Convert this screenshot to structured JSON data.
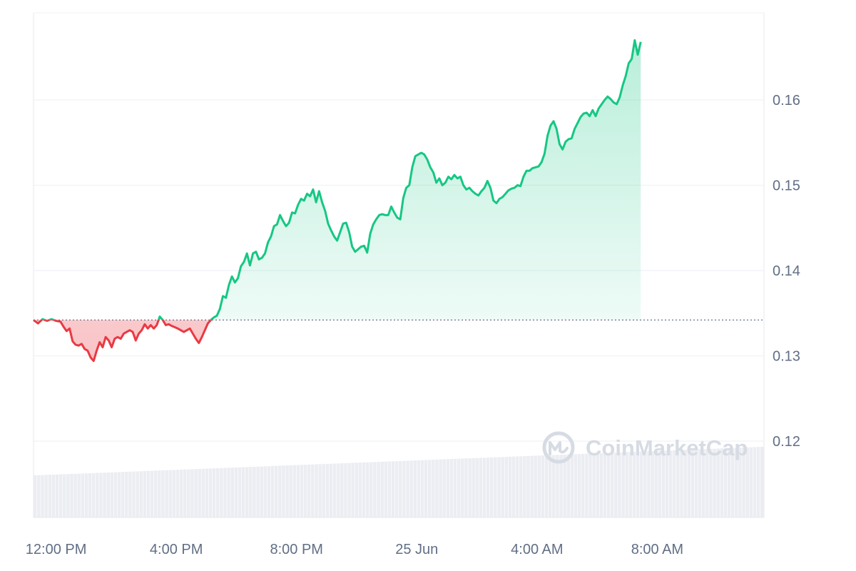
{
  "chart_data": {
    "type": "area",
    "title": "",
    "xlabel": "",
    "ylabel": "",
    "baseline": 0.1342,
    "ylim": [
      0.11,
      0.17
    ],
    "y_ticks": [
      {
        "value": 0.12,
        "label": "0.12"
      },
      {
        "value": 0.13,
        "label": "0.13"
      },
      {
        "value": 0.14,
        "label": "0.14"
      },
      {
        "value": 0.15,
        "label": "0.15"
      },
      {
        "value": 0.16,
        "label": "0.16"
      }
    ],
    "x_range_hours": [
      0,
      24.3
    ],
    "x_ticks": [
      {
        "label": "12:00 PM",
        "hours": 0.75
      },
      {
        "label": "4:00 PM",
        "hours": 4.75
      },
      {
        "label": "8:00 PM",
        "hours": 8.75
      },
      {
        "label": "25 Jun",
        "hours": 12.75
      },
      {
        "label": "4:00 AM",
        "hours": 16.75
      },
      {
        "label": "8:00 AM",
        "hours": 20.75
      }
    ],
    "series": [
      {
        "points": [
          [
            0.0,
            0.1342
          ],
          [
            0.15,
            0.1338
          ],
          [
            0.3,
            0.1343
          ],
          [
            0.45,
            0.1341
          ],
          [
            0.6,
            0.1343
          ],
          [
            0.75,
            0.1341
          ],
          [
            0.9,
            0.134
          ],
          [
            1.0,
            0.1334
          ],
          [
            1.1,
            0.1329
          ],
          [
            1.2,
            0.1332
          ],
          [
            1.3,
            0.1317
          ],
          [
            1.4,
            0.1313
          ],
          [
            1.5,
            0.1312
          ],
          [
            1.6,
            0.1314
          ],
          [
            1.7,
            0.1308
          ],
          [
            1.8,
            0.1306
          ],
          [
            1.9,
            0.1298
          ],
          [
            2.0,
            0.1294
          ],
          [
            2.1,
            0.1306
          ],
          [
            2.2,
            0.1316
          ],
          [
            2.3,
            0.131
          ],
          [
            2.4,
            0.1322
          ],
          [
            2.5,
            0.1318
          ],
          [
            2.6,
            0.131
          ],
          [
            2.7,
            0.132
          ],
          [
            2.8,
            0.1322
          ],
          [
            2.9,
            0.132
          ],
          [
            3.0,
            0.1326
          ],
          [
            3.1,
            0.1328
          ],
          [
            3.2,
            0.133
          ],
          [
            3.3,
            0.1328
          ],
          [
            3.4,
            0.1318
          ],
          [
            3.5,
            0.1326
          ],
          [
            3.6,
            0.133
          ],
          [
            3.7,
            0.1337
          ],
          [
            3.8,
            0.1332
          ],
          [
            3.9,
            0.1336
          ],
          [
            4.0,
            0.1332
          ],
          [
            4.1,
            0.1336
          ],
          [
            4.2,
            0.1346
          ],
          [
            4.3,
            0.1342
          ],
          [
            4.4,
            0.1336
          ],
          [
            4.5,
            0.1337
          ],
          [
            4.6,
            0.1335
          ],
          [
            4.8,
            0.1332
          ],
          [
            5.0,
            0.1328
          ],
          [
            5.2,
            0.1332
          ],
          [
            5.4,
            0.132
          ],
          [
            5.5,
            0.1315
          ],
          [
            5.6,
            0.1322
          ],
          [
            5.7,
            0.133
          ],
          [
            5.8,
            0.1338
          ],
          [
            5.9,
            0.1342
          ],
          [
            6.0,
            0.1345
          ],
          [
            6.1,
            0.1347
          ],
          [
            6.2,
            0.1355
          ],
          [
            6.3,
            0.137
          ],
          [
            6.4,
            0.1368
          ],
          [
            6.5,
            0.1383
          ],
          [
            6.6,
            0.1393
          ],
          [
            6.7,
            0.1386
          ],
          [
            6.8,
            0.1391
          ],
          [
            6.9,
            0.1405
          ],
          [
            7.0,
            0.141
          ],
          [
            7.1,
            0.142
          ],
          [
            7.2,
            0.1406
          ],
          [
            7.3,
            0.142
          ],
          [
            7.4,
            0.1422
          ],
          [
            7.5,
            0.1413
          ],
          [
            7.6,
            0.1415
          ],
          [
            7.7,
            0.142
          ],
          [
            7.8,
            0.1433
          ],
          [
            7.9,
            0.144
          ],
          [
            8.0,
            0.1452
          ],
          [
            8.1,
            0.1454
          ],
          [
            8.2,
            0.1465
          ],
          [
            8.3,
            0.1458
          ],
          [
            8.4,
            0.1452
          ],
          [
            8.5,
            0.1456
          ],
          [
            8.6,
            0.1468
          ],
          [
            8.7,
            0.1467
          ],
          [
            8.8,
            0.1477
          ],
          [
            8.9,
            0.1484
          ],
          [
            9.0,
            0.1482
          ],
          [
            9.1,
            0.149
          ],
          [
            9.2,
            0.1487
          ],
          [
            9.3,
            0.1495
          ],
          [
            9.4,
            0.148
          ],
          [
            9.5,
            0.1493
          ],
          [
            9.6,
            0.148
          ],
          [
            9.7,
            0.147
          ],
          [
            9.8,
            0.1455
          ],
          [
            9.9,
            0.1447
          ],
          [
            10.0,
            0.144
          ],
          [
            10.1,
            0.1435
          ],
          [
            10.2,
            0.1445
          ],
          [
            10.3,
            0.1455
          ],
          [
            10.4,
            0.1456
          ],
          [
            10.5,
            0.1445
          ],
          [
            10.6,
            0.1428
          ],
          [
            10.7,
            0.1422
          ],
          [
            10.8,
            0.1425
          ],
          [
            10.9,
            0.1428
          ],
          [
            11.0,
            0.1429
          ],
          [
            11.1,
            0.1421
          ],
          [
            11.2,
            0.1443
          ],
          [
            11.3,
            0.1454
          ],
          [
            11.4,
            0.146
          ],
          [
            11.5,
            0.1465
          ],
          [
            11.6,
            0.1466
          ],
          [
            11.7,
            0.1465
          ],
          [
            11.8,
            0.1465
          ],
          [
            11.9,
            0.1475
          ],
          [
            12.0,
            0.1468
          ],
          [
            12.1,
            0.1462
          ],
          [
            12.2,
            0.146
          ],
          [
            12.3,
            0.1485
          ],
          [
            12.4,
            0.1497
          ],
          [
            12.5,
            0.15
          ],
          [
            12.6,
            0.1521
          ],
          [
            12.7,
            0.1534
          ],
          [
            12.8,
            0.1536
          ],
          [
            12.9,
            0.1538
          ],
          [
            13.0,
            0.1536
          ],
          [
            13.1,
            0.153
          ],
          [
            13.2,
            0.1521
          ],
          [
            13.3,
            0.1515
          ],
          [
            13.4,
            0.1503
          ],
          [
            13.5,
            0.1508
          ],
          [
            13.6,
            0.15
          ],
          [
            13.7,
            0.1503
          ],
          [
            13.8,
            0.151
          ],
          [
            13.9,
            0.1507
          ],
          [
            14.0,
            0.1512
          ],
          [
            14.1,
            0.1508
          ],
          [
            14.2,
            0.151
          ],
          [
            14.3,
            0.15
          ],
          [
            14.4,
            0.1495
          ],
          [
            14.5,
            0.1497
          ],
          [
            14.6,
            0.1493
          ],
          [
            14.7,
            0.149
          ],
          [
            14.8,
            0.1488
          ],
          [
            14.9,
            0.1493
          ],
          [
            15.0,
            0.1497
          ],
          [
            15.1,
            0.1505
          ],
          [
            15.2,
            0.1497
          ],
          [
            15.3,
            0.1482
          ],
          [
            15.4,
            0.1479
          ],
          [
            15.5,
            0.1484
          ],
          [
            15.6,
            0.1486
          ],
          [
            15.7,
            0.149
          ],
          [
            15.8,
            0.1494
          ],
          [
            15.9,
            0.1496
          ],
          [
            16.0,
            0.1497
          ],
          [
            16.1,
            0.15
          ],
          [
            16.2,
            0.1499
          ],
          [
            16.3,
            0.151
          ],
          [
            16.4,
            0.1517
          ],
          [
            16.5,
            0.1517
          ],
          [
            16.6,
            0.152
          ],
          [
            16.7,
            0.1521
          ],
          [
            16.8,
            0.1522
          ],
          [
            16.9,
            0.1527
          ],
          [
            17.0,
            0.1537
          ],
          [
            17.1,
            0.1558
          ],
          [
            17.2,
            0.157
          ],
          [
            17.3,
            0.1575
          ],
          [
            17.4,
            0.1566
          ],
          [
            17.5,
            0.1548
          ],
          [
            17.6,
            0.1542
          ],
          [
            17.7,
            0.1551
          ],
          [
            17.8,
            0.1554
          ],
          [
            17.9,
            0.1555
          ],
          [
            18.0,
            0.1566
          ],
          [
            18.1,
            0.1573
          ],
          [
            18.2,
            0.158
          ],
          [
            18.3,
            0.1584
          ],
          [
            18.4,
            0.1585
          ],
          [
            18.5,
            0.1581
          ],
          [
            18.6,
            0.1588
          ],
          [
            18.7,
            0.1581
          ],
          [
            18.8,
            0.159
          ],
          [
            18.9,
            0.1595
          ],
          [
            19.0,
            0.16
          ],
          [
            19.1,
            0.1604
          ],
          [
            19.2,
            0.1601
          ],
          [
            19.3,
            0.1597
          ],
          [
            19.4,
            0.1595
          ],
          [
            19.5,
            0.1603
          ],
          [
            19.6,
            0.1617
          ],
          [
            19.7,
            0.1628
          ],
          [
            19.8,
            0.1643
          ],
          [
            19.9,
            0.1648
          ],
          [
            20.0,
            0.167
          ],
          [
            20.1,
            0.1653
          ],
          [
            20.2,
            0.1668
          ]
        ]
      }
    ],
    "volume_note": ""
  },
  "watermark": {
    "text": "CoinMarketCap",
    "icon": "coinmarketcap-logo-icon"
  },
  "colors": {
    "up": "#16c784",
    "down": "#ea3943",
    "up_fill": "#16c784",
    "down_fill": "#ea3943",
    "grid": "#eff2f5",
    "volume": "#e7eaf0",
    "baseline": "#58667e",
    "tick_text": "#616e85",
    "watermark": "#d7dbe3"
  }
}
